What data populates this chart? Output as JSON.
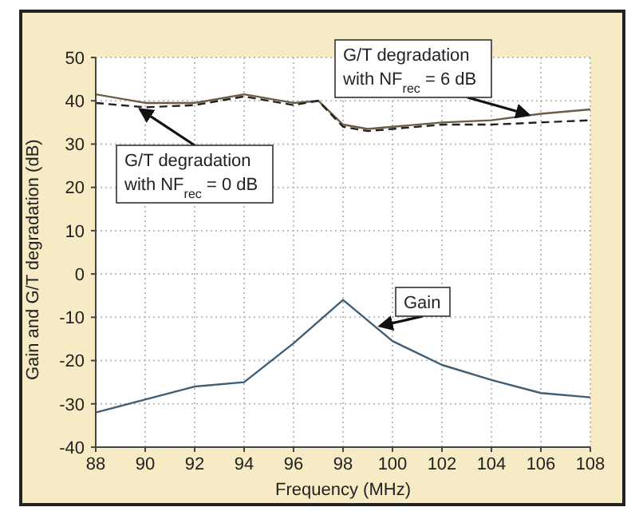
{
  "chart_data": {
    "type": "line",
    "xlabel": "Frequency (MHz)",
    "ylabel": "Gain and G/T degradation (dB)",
    "xlim": [
      88,
      108
    ],
    "xticks": [
      88,
      90,
      92,
      94,
      96,
      98,
      100,
      102,
      104,
      106,
      108
    ],
    "ylim": [
      -40,
      50
    ],
    "yticks": [
      -40,
      -30,
      -20,
      -10,
      0,
      10,
      20,
      30,
      40,
      50
    ],
    "grid": true,
    "marker": "none",
    "series": [
      {
        "color": "#6b5d45",
        "line_style": "solid",
        "x": [
          88,
          90,
          92,
          94,
          96,
          97,
          98,
          99,
          100,
          102,
          104,
          106,
          108
        ],
        "values": [
          41.5,
          39.5,
          39.5,
          41.5,
          39.5,
          40,
          34.5,
          33.5,
          34,
          35,
          35.5,
          37,
          38
        ]
      },
      {
        "color": "#222222",
        "line_style": "dashed",
        "x": [
          88,
          90,
          92,
          94,
          96,
          97,
          98,
          99,
          100,
          102,
          104,
          106,
          108
        ],
        "values": [
          39.5,
          38.5,
          39,
          41,
          39,
          40,
          34,
          33,
          33.5,
          34.5,
          34.5,
          35,
          35.5
        ]
      },
      {
        "color": "#3f5d74",
        "line_style": "solid",
        "x": [
          88,
          90,
          92,
          94,
          96,
          98,
          100,
          102,
          104,
          106,
          108
        ],
        "values": [
          -32,
          -29,
          -26,
          -25,
          -16,
          -6,
          -15.5,
          -21,
          -24.5,
          -27.5,
          -28.5
        ]
      }
    ],
    "annotations": [
      {
        "text": "G/T degradation with NF$_{rec}$ = 6 dB",
        "x": 105.5,
        "y": 36.8
      },
      {
        "text": "G/T degradation with NF$_{rec}$ = 0 dB",
        "x": 89.8,
        "y": 38
      },
      {
        "text": "Gain",
        "x": 99.5,
        "y": -12
      }
    ]
  }
}
